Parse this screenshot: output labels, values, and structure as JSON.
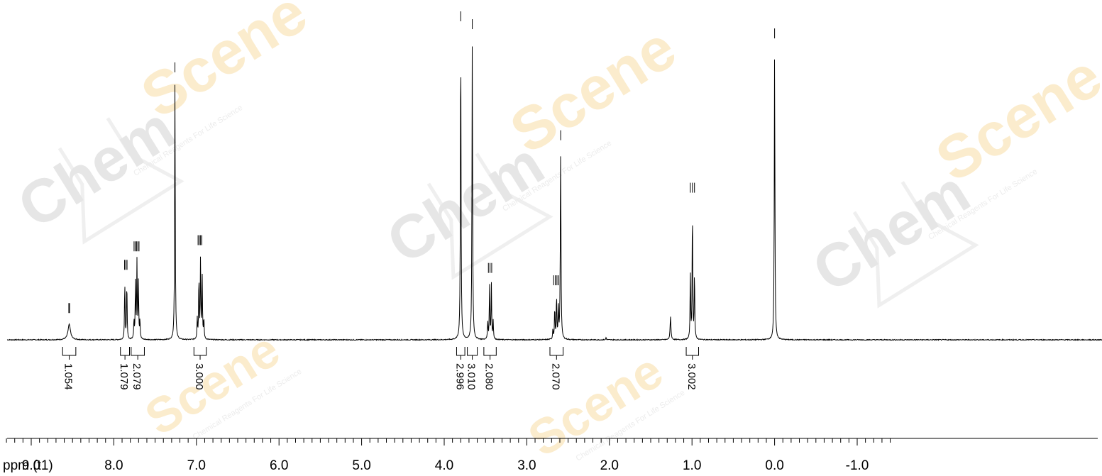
{
  "watermark": {
    "brand_prefix": "Chem",
    "brand_suffix": "Scene",
    "tagline": "Chemical Reagents For Life Science",
    "colors": {
      "prefix": "#e6e6e6",
      "suffix": "#fbeccd",
      "tagline": "#ececec"
    }
  },
  "chart_data": {
    "type": "line",
    "title": "",
    "xlabel": "ppm (t1)",
    "ylabel": "",
    "xlim": [
      9.6,
      -1.4
    ],
    "x_reversed": true,
    "x_ticks": [
      9.0,
      8.0,
      7.0,
      6.0,
      5.0,
      4.0,
      3.0,
      2.0,
      1.0,
      0.0,
      -1.0
    ],
    "x_tick_labels": [
      "9.0",
      "8.0",
      "7.0",
      "6.0",
      "5.0",
      "4.0",
      "3.0",
      "2.0",
      "1.0",
      "0.0",
      "-1.0"
    ],
    "minor_tick_step": 0.1,
    "grid": false,
    "line_color": "#000000",
    "peaks": [
      {
        "ppm": 8.54,
        "height": 0.05,
        "width": 0.018,
        "peak_marks": [
          8.545,
          8.535
        ]
      },
      {
        "ppm": 7.855,
        "height": 0.19,
        "width": 0.004,
        "multiplicity": "d",
        "j": 0.025,
        "peak_marks": [
          7.87,
          7.855,
          7.84
        ]
      },
      {
        "ppm": 7.72,
        "height": 0.25,
        "width": 0.004,
        "multiplicity": "m",
        "j": 0.018,
        "peak_marks": [
          7.755,
          7.74,
          7.725,
          7.71,
          7.695
        ]
      },
      {
        "ppm": 7.26,
        "height": 0.83,
        "width": 0.0045,
        "peak_marks": [
          7.26
        ]
      },
      {
        "ppm": 6.95,
        "height": 0.27,
        "width": 0.004,
        "multiplicity": "m",
        "j": 0.02,
        "peak_marks": [
          6.98,
          6.965,
          6.95,
          6.935
        ]
      },
      {
        "ppm": 3.8,
        "height": 1.0,
        "width": 0.0045,
        "peak_marks": [
          3.8
        ]
      },
      {
        "ppm": 3.66,
        "height": 0.97,
        "width": 0.0045,
        "peak_marks": [
          3.66
        ]
      },
      {
        "ppm": 3.44,
        "height": 0.18,
        "width": 0.004,
        "multiplicity": "q",
        "j": 0.022,
        "peak_marks": [
          3.465,
          3.445,
          3.425
        ]
      },
      {
        "ppm": 2.64,
        "height": 0.14,
        "width": 0.004,
        "multiplicity": "m",
        "j": 0.022,
        "peak_marks": [
          2.675,
          2.655,
          2.635,
          2.615
        ]
      },
      {
        "ppm": 2.59,
        "height": 0.61,
        "width": 0.0045,
        "peak_marks": [
          2.59
        ]
      },
      {
        "ppm": 1.26,
        "height": 0.075,
        "width": 0.006,
        "peak_marks": []
      },
      {
        "ppm": 0.995,
        "height": 0.44,
        "width": 0.004,
        "multiplicity": "t",
        "j": 0.025,
        "peak_marks": [
          1.02,
          0.995,
          0.97
        ]
      },
      {
        "ppm": 0.0,
        "height": 0.94,
        "width": 0.0045,
        "peak_marks": [
          0.0
        ]
      },
      {
        "ppm": 2.04,
        "height": 0.008,
        "width": 0.004,
        "peak_marks": []
      }
    ],
    "integrals": [
      {
        "from": 8.62,
        "to": 8.46,
        "value": "1.054"
      },
      {
        "from": 7.92,
        "to": 7.81,
        "value": "1.079"
      },
      {
        "from": 7.79,
        "to": 7.63,
        "value": "2.079"
      },
      {
        "from": 7.03,
        "to": 6.88,
        "value": "3.000"
      },
      {
        "from": 3.85,
        "to": 3.75,
        "value": "2.996"
      },
      {
        "from": 3.72,
        "to": 3.6,
        "value": "3.010"
      },
      {
        "from": 3.52,
        "to": 3.37,
        "value": "2.080"
      },
      {
        "from": 2.72,
        "to": 2.56,
        "value": "2.070"
      },
      {
        "from": 1.07,
        "to": 0.92,
        "value": "3.002"
      }
    ]
  }
}
